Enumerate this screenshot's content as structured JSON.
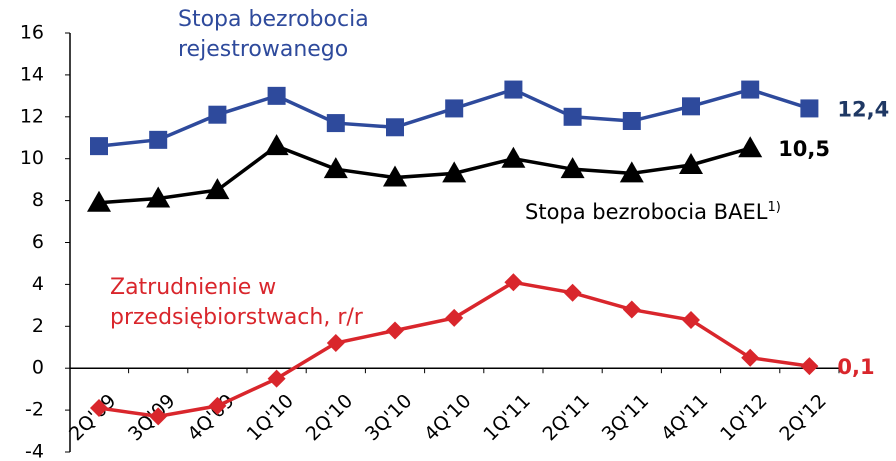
{
  "chart_data": {
    "type": "line",
    "categories": [
      "2Q'09",
      "3Q'09",
      "4Q'09",
      "1Q'10",
      "2Q'10",
      "3Q'10",
      "4Q'10",
      "1Q'11",
      "2Q'11",
      "3Q'11",
      "4Q'11",
      "1Q'12",
      "2Q'12"
    ],
    "series": [
      {
        "name": "Stopa bezrobocia rejestrowanego",
        "color": "#2e4a9c",
        "marker": "square",
        "values": [
          10.6,
          10.9,
          12.1,
          13.0,
          11.7,
          11.5,
          12.4,
          13.3,
          12.0,
          11.8,
          12.5,
          13.3,
          12.4
        ],
        "value_labels": [
          null,
          null,
          null,
          null,
          null,
          null,
          null,
          null,
          null,
          null,
          null,
          null,
          "12,4"
        ]
      },
      {
        "name": "Stopa bezrobocia BAEL",
        "footnote": "1)",
        "color": "#000000",
        "marker": "triangle",
        "values": [
          7.9,
          8.1,
          8.5,
          10.6,
          9.5,
          9.1,
          9.3,
          10.0,
          9.5,
          9.3,
          9.7,
          10.5,
          null
        ],
        "value_labels": [
          null,
          null,
          null,
          null,
          null,
          null,
          null,
          null,
          null,
          null,
          null,
          "10,5",
          null
        ]
      },
      {
        "name": "Zatrudnienie w przedsiębiorstwach, r/r",
        "color": "#d9262c",
        "marker": "diamond",
        "values": [
          -1.9,
          -2.3,
          -1.8,
          -0.5,
          1.2,
          1.8,
          2.4,
          4.1,
          3.6,
          2.8,
          2.3,
          0.5,
          0.1
        ],
        "value_labels": [
          null,
          null,
          null,
          null,
          null,
          null,
          null,
          null,
          null,
          null,
          null,
          null,
          "0,1"
        ]
      }
    ],
    "ylim": [
      -4,
      16
    ],
    "yticks": [
      -4,
      -2,
      0,
      2,
      4,
      6,
      8,
      10,
      12,
      14,
      16
    ],
    "grid": false
  }
}
